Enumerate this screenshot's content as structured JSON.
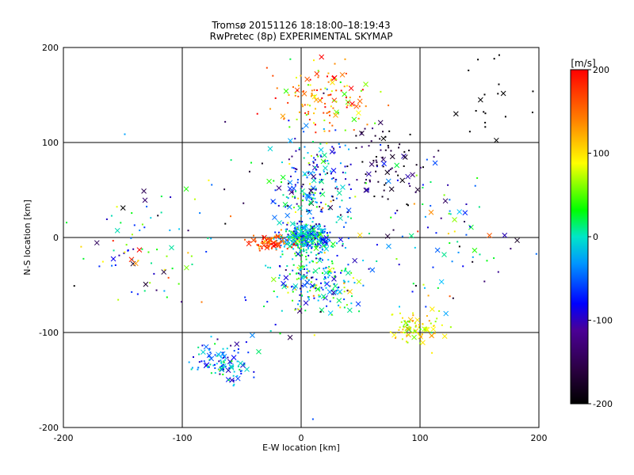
{
  "chart_data": {
    "type": "scatter",
    "title": "Tromsø 20151126 18:18:00–18:19:43",
    "subtitle": "RwPretec (8p) EXPERIMENTAL SKYMAP",
    "xlabel": "E-W location [km]",
    "ylabel": "N-S location [km]",
    "xlim": [
      -200,
      200
    ],
    "ylim": [
      -200,
      200
    ],
    "xticks": [
      "-200",
      "-100",
      "0",
      "100",
      "200"
    ],
    "yticks": [
      "-200",
      "-100",
      "0",
      "100",
      "200"
    ],
    "grid": true,
    "colorbar": {
      "label": "[m/s]",
      "min": -200,
      "max": 200,
      "ticks": [
        "200",
        "100",
        "0",
        "-100",
        "-200"
      ],
      "colors": [
        "#000000",
        "#1e0030",
        "#3c0080",
        "#0000ff",
        "#00ccff",
        "#00ff00",
        "#ffff00",
        "#ff8000",
        "#ff0000"
      ]
    },
    "markers": [
      "dot",
      "x"
    ],
    "point_count": 1500
  }
}
